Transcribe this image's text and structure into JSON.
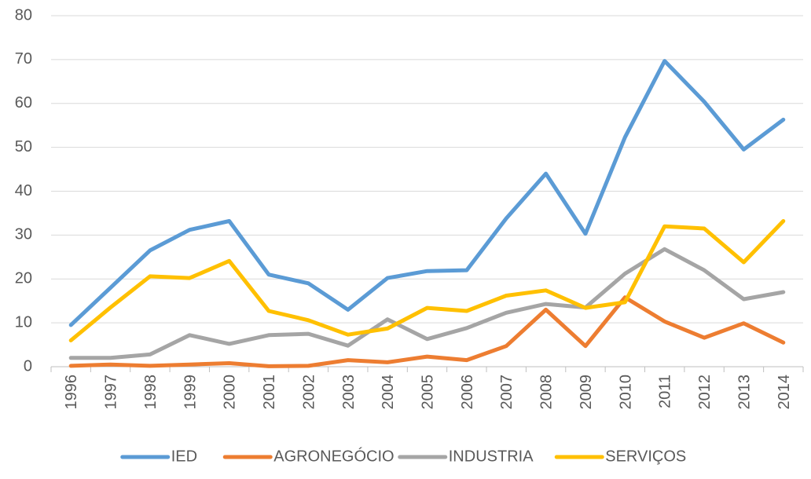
{
  "chart_data": {
    "type": "line",
    "title": "",
    "xlabel": "",
    "ylabel": "",
    "ylim": [
      0,
      80
    ],
    "yticks": [
      0,
      10,
      20,
      30,
      40,
      50,
      60,
      70,
      80
    ],
    "grid": true,
    "legend_position": "bottom",
    "categories": [
      "1996",
      "1997",
      "1998",
      "1999",
      "2000",
      "2001",
      "2002",
      "2003",
      "2004",
      "2005",
      "2006",
      "2007",
      "2008",
      "2009",
      "2010",
      "2011",
      "2012",
      "2013",
      "2014"
    ],
    "series": [
      {
        "name": "IED",
        "color": "#5b9bd5",
        "values": [
          9.5,
          18,
          26.5,
          31.2,
          33.2,
          21,
          19,
          13,
          20.2,
          21.8,
          22,
          33.8,
          44,
          30.3,
          52.3,
          69.7,
          60.4,
          49.5,
          56.3
        ]
      },
      {
        "name": "AGRONEGÓCIO",
        "color": "#ed7d31",
        "values": [
          0.2,
          0.5,
          0.2,
          0.5,
          0.8,
          0.1,
          0.2,
          1.5,
          1,
          2.3,
          1.5,
          4.7,
          13,
          4.7,
          15.8,
          10.3,
          6.6,
          9.9,
          5.5
        ]
      },
      {
        "name": "INDUSTRIA",
        "color": "#a5a5a5",
        "values": [
          2,
          2,
          2.8,
          7.2,
          5.2,
          7.2,
          7.5,
          4.8,
          10.8,
          6.3,
          8.8,
          12.3,
          14.3,
          13.5,
          21.2,
          26.8,
          22,
          15.4,
          17
        ]
      },
      {
        "name": "SERVIÇOS",
        "color": "#ffc000",
        "values": [
          6,
          13.5,
          20.6,
          20.2,
          24.1,
          12.7,
          10.6,
          7.3,
          8.7,
          13.4,
          12.7,
          16.2,
          17.4,
          13.4,
          14.7,
          32,
          31.5,
          23.8,
          33.2
        ]
      }
    ]
  }
}
